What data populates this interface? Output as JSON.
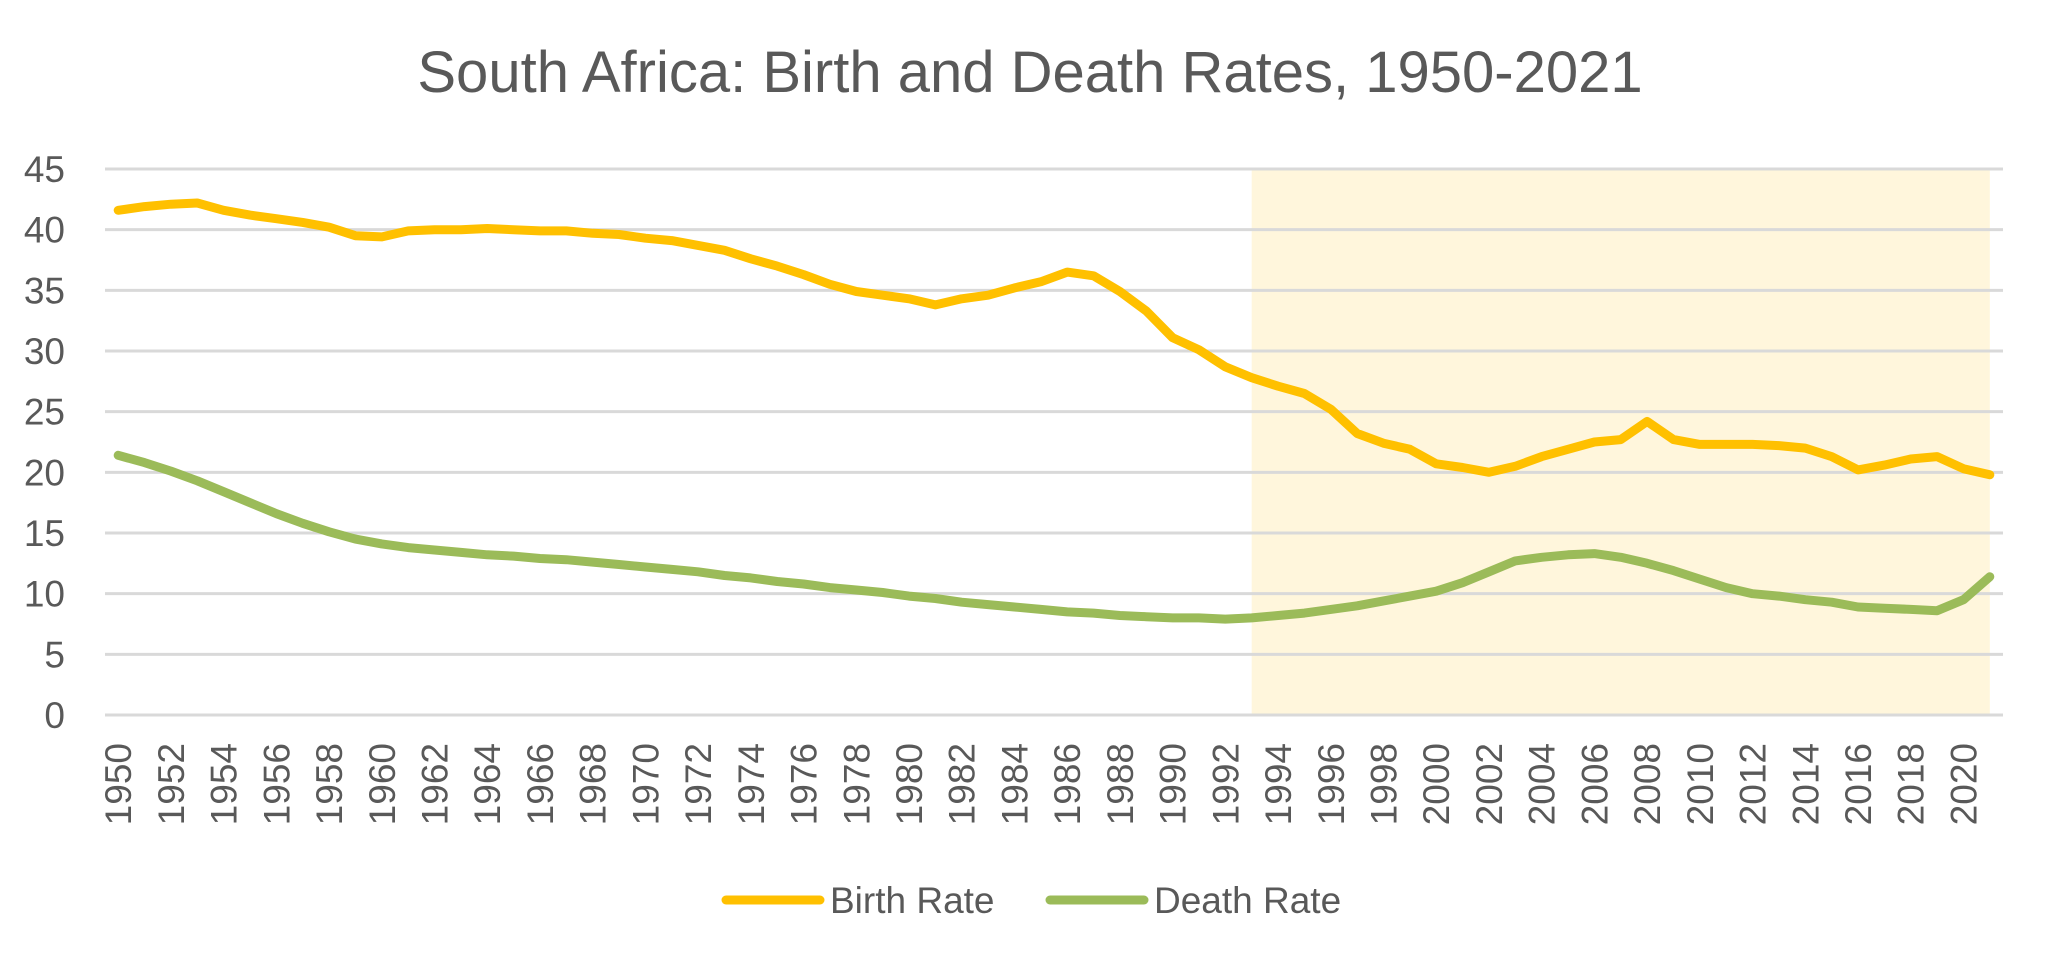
{
  "chart_data": {
    "type": "line",
    "title": "South Africa: Birth and Death Rates, 1950-2021",
    "xlabel": "",
    "ylabel": "",
    "ylim": [
      0,
      45
    ],
    "yticks": [
      0,
      5,
      10,
      15,
      20,
      25,
      30,
      35,
      40,
      45
    ],
    "grid": true,
    "legend_position": "bottom",
    "highlight": {
      "from": 1993,
      "to": 2021,
      "color": "#FFF6DC"
    },
    "x": [
      1950,
      1951,
      1952,
      1953,
      1954,
      1955,
      1956,
      1957,
      1958,
      1959,
      1960,
      1961,
      1962,
      1963,
      1964,
      1965,
      1966,
      1967,
      1968,
      1969,
      1970,
      1971,
      1972,
      1973,
      1974,
      1975,
      1976,
      1977,
      1978,
      1979,
      1980,
      1981,
      1982,
      1983,
      1984,
      1985,
      1986,
      1987,
      1988,
      1989,
      1990,
      1991,
      1992,
      1993,
      1994,
      1995,
      1996,
      1997,
      1998,
      1999,
      2000,
      2001,
      2002,
      2003,
      2004,
      2005,
      2006,
      2007,
      2008,
      2009,
      2010,
      2011,
      2012,
      2013,
      2014,
      2015,
      2016,
      2017,
      2018,
      2019,
      2020,
      2021
    ],
    "series": [
      {
        "name": "Birth Rate",
        "color": "#FFC000",
        "values": [
          41.6,
          41.9,
          42.1,
          42.2,
          41.6,
          41.2,
          40.9,
          40.6,
          40.2,
          39.5,
          39.4,
          39.9,
          40.0,
          40.0,
          40.1,
          40.0,
          39.9,
          39.9,
          39.7,
          39.6,
          39.3,
          39.1,
          38.7,
          38.3,
          37.6,
          37.0,
          36.3,
          35.5,
          34.9,
          34.6,
          34.3,
          33.8,
          34.3,
          34.6,
          35.2,
          35.7,
          36.5,
          36.2,
          34.9,
          33.3,
          31.1,
          30.1,
          28.7,
          27.8,
          27.1,
          26.5,
          25.2,
          23.2,
          22.4,
          21.9,
          20.7,
          20.4,
          20.0,
          20.5,
          21.3,
          21.9,
          22.5,
          22.7,
          24.2,
          22.7,
          22.3,
          22.3,
          22.3,
          22.2,
          22.0,
          21.3,
          20.2,
          20.6,
          21.1,
          21.3,
          20.3,
          19.8
        ]
      },
      {
        "name": "Death Rate",
        "color": "#9BBB59",
        "values": [
          21.4,
          20.8,
          20.1,
          19.3,
          18.4,
          17.5,
          16.6,
          15.8,
          15.1,
          14.5,
          14.1,
          13.8,
          13.6,
          13.4,
          13.2,
          13.1,
          12.9,
          12.8,
          12.6,
          12.4,
          12.2,
          12.0,
          11.8,
          11.5,
          11.3,
          11.0,
          10.8,
          10.5,
          10.3,
          10.1,
          9.8,
          9.6,
          9.3,
          9.1,
          8.9,
          8.7,
          8.5,
          8.4,
          8.2,
          8.1,
          8.0,
          8.0,
          7.9,
          8.0,
          8.2,
          8.4,
          8.7,
          9.0,
          9.4,
          9.8,
          10.2,
          10.9,
          11.8,
          12.7,
          13.0,
          13.2,
          13.3,
          13.0,
          12.5,
          11.9,
          11.2,
          10.5,
          10.0,
          9.8,
          9.5,
          9.3,
          8.9,
          8.8,
          8.7,
          8.6,
          9.5,
          11.4
        ]
      }
    ]
  }
}
